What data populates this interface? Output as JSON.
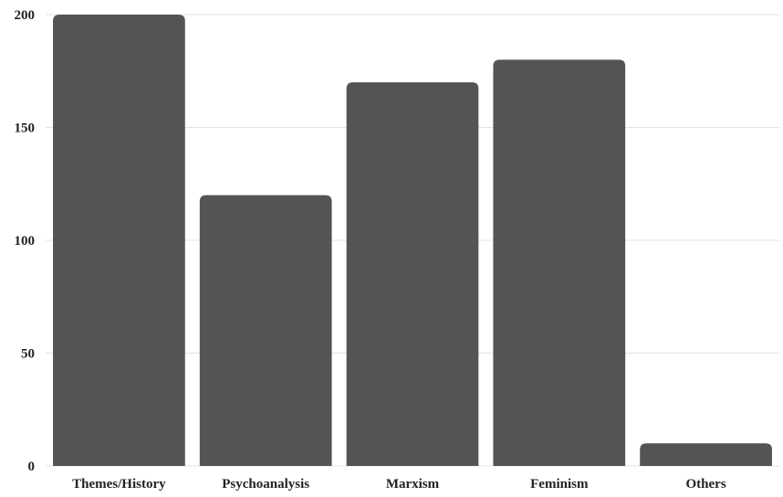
{
  "chart_data": {
    "type": "bar",
    "title": "",
    "xlabel": "",
    "ylabel": "",
    "categories": [
      "Themes/History",
      "Psychoanalysis",
      "Marxism",
      "Feminism",
      "Others"
    ],
    "values": [
      200,
      120,
      170,
      180,
      10
    ],
    "ylim": [
      0,
      200
    ],
    "yticks": [
      0,
      50,
      100,
      150,
      200
    ],
    "grid": true,
    "legend": "none",
    "bar_color": "#545454",
    "grid_color": "#e3e3e3",
    "text_color": "#222222"
  }
}
